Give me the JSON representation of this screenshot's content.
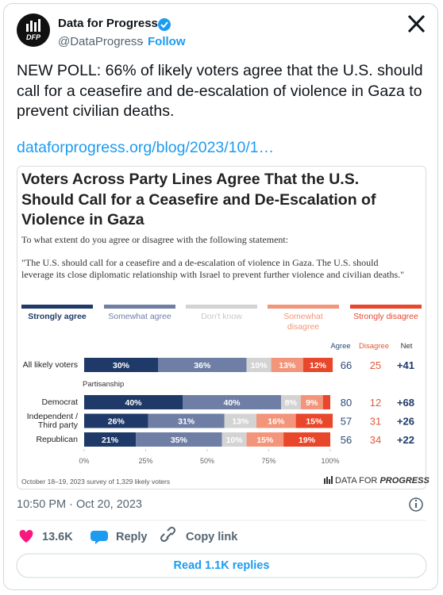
{
  "tweet": {
    "author": "Data for Progress",
    "avatar_text": "DFP",
    "handle": "@DataProgress",
    "separator": "·",
    "follow": "Follow",
    "text": "NEW POLL: 66% of likely voters agree that the U.S. should call for a ceasefire and de-escalation of violence in Gaza to prevent civilian deaths.",
    "link": "dataforprogress.org/blog/2023/10/1…",
    "timestamp": "10:50 PM · Oct 20, 2023",
    "likes": "13.6K",
    "reply": "Reply",
    "copy_link": "Copy link",
    "read_replies": "Read 1.1K replies"
  },
  "chart_data": {
    "type": "bar",
    "orientation": "horizontal",
    "stacked": true,
    "title": "Voters Across Party Lines Agree That the U.S. Should Call for a Ceasefire and De-Escalation of Violence in Gaza",
    "subtitle": "To what extent do you agree or disagree with the following statement:",
    "statement": "\"The U.S. should call for a ceasefire and a de-escalation of violence in Gaza. The U.S. should leverage its close diplomatic relationship with Israel to prevent further violence and civilian deaths.\"",
    "categories": [
      "All likely voters",
      "Democrat",
      "Independent / Third party",
      "Republican"
    ],
    "group_label": "Partisanship",
    "series": [
      {
        "name": "Strongly agree",
        "color": "#1f3a68",
        "values": [
          30,
          40,
          26,
          21
        ],
        "value_labels": [
          "30%",
          "40%",
          "26%",
          "21%"
        ]
      },
      {
        "name": "Somewhat agree",
        "color": "#6f7ea5",
        "values": [
          36,
          40,
          31,
          35
        ],
        "value_labels": [
          "36%",
          "40%",
          "31%",
          "35%"
        ]
      },
      {
        "name": "Don't know",
        "color": "#d3d3d3",
        "values": [
          10,
          8,
          13,
          10
        ],
        "value_labels": [
          "10%",
          "8%",
          "13%",
          "10%"
        ]
      },
      {
        "name": "Somewhat disagree",
        "color": "#f2957b",
        "values": [
          13,
          9,
          16,
          15
        ],
        "value_labels": [
          "13%",
          "9%",
          "16%",
          "15%"
        ]
      },
      {
        "name": "Strongly disagree",
        "color": "#e8472c",
        "values": [
          12,
          3,
          15,
          19
        ],
        "value_labels": [
          "12%",
          null,
          "15%",
          "19%"
        ]
      }
    ],
    "xlim": [
      0,
      100
    ],
    "xticks": [
      {
        "value": 0,
        "label": "0%"
      },
      {
        "value": 25,
        "label": "25%"
      },
      {
        "value": 50,
        "label": "50%"
      },
      {
        "value": 75,
        "label": "75%"
      },
      {
        "value": 100,
        "label": "100%"
      }
    ],
    "columns": {
      "agree_header": "Agree",
      "disagree_header": "Disagree",
      "net_header": "Net",
      "agree": [
        66,
        80,
        57,
        56
      ],
      "disagree": [
        25,
        12,
        31,
        34
      ],
      "net": [
        41,
        68,
        26,
        22
      ],
      "net_labels": [
        "+41",
        "+68",
        "+26",
        "+22"
      ]
    },
    "source": "October 18–19, 2023 survey of 1,329 likely voters",
    "logo_prefix": "DATA FOR",
    "logo_emphasis": "PROGRESS"
  }
}
